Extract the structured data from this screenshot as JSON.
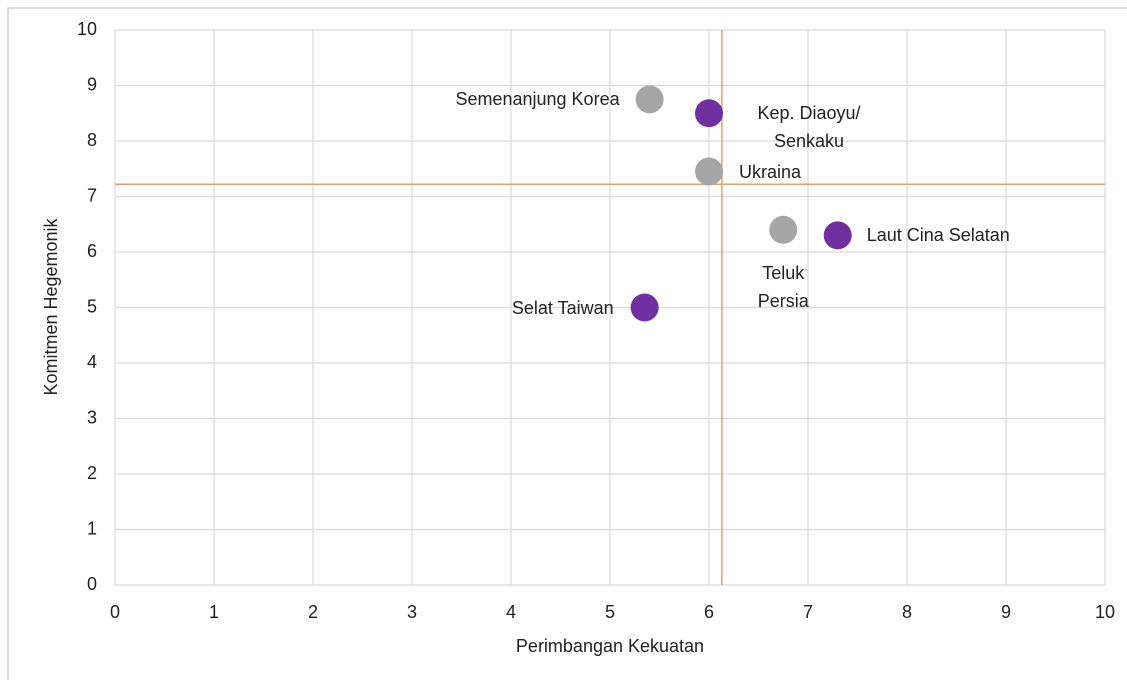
{
  "chart_data": {
    "type": "scatter",
    "x_label": "Perimbangan Kekuatan",
    "y_label": "Komitmen Hegemonik",
    "xlim": [
      0,
      10
    ],
    "xticks": [
      0,
      1,
      2,
      3,
      4,
      5,
      6,
      7,
      8,
      9,
      10
    ],
    "ylim": [
      0,
      10
    ],
    "yticks": [
      0,
      1,
      2,
      3,
      4,
      5,
      6,
      7,
      8,
      9,
      10
    ],
    "grid": true,
    "reference_lines": {
      "x": 6.13,
      "y": 7.22,
      "color": "#e0a070"
    },
    "points": [
      {
        "label": "Semenanjung Korea",
        "x": 5.4,
        "y": 8.75,
        "color": "#a6a6a6"
      },
      {
        "label": "Kep. Diaoyu/ Senkaku",
        "x": 6.0,
        "y": 8.5,
        "color": "#7030a0"
      },
      {
        "label": "Ukraina",
        "x": 6.0,
        "y": 7.45,
        "color": "#a6a6a6"
      },
      {
        "label": "Teluk Persia",
        "x": 6.75,
        "y": 6.4,
        "color": "#a6a6a6"
      },
      {
        "label": "Laut Cina Selatan",
        "x": 7.3,
        "y": 6.3,
        "color": "#7030a0"
      },
      {
        "label": "Selat Taiwan",
        "x": 5.35,
        "y": 5.0,
        "color": "#7030a0"
      }
    ]
  }
}
